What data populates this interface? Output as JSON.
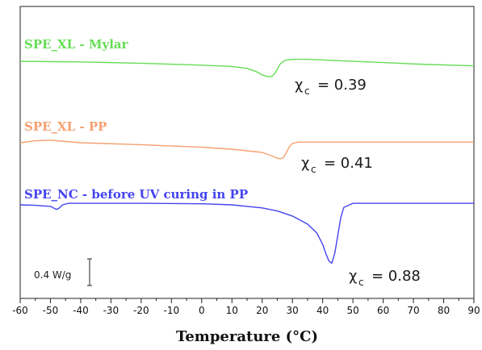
{
  "chart_data": {
    "type": "line",
    "xlabel": "Temperature (°C)",
    "ylabel": "",
    "xlim": [
      -60,
      90
    ],
    "xticks": [
      -60,
      -50,
      -40,
      -30,
      -20,
      -10,
      0,
      10,
      20,
      30,
      40,
      50,
      60,
      70,
      80,
      90
    ],
    "grid": false,
    "scale_bar": "0.4 W/g",
    "series": [
      {
        "name": "SPE_XL - Mylar",
        "color": "#66dd55",
        "annotation": {
          "symbol": "χ",
          "subscript": "c",
          "value": "= 0.39"
        },
        "x": [
          -60,
          -40,
          -20,
          0,
          10,
          15,
          18,
          20,
          22,
          23,
          24,
          25,
          26,
          27,
          28,
          30,
          35,
          45,
          60,
          75,
          90
        ],
        "y": [
          0,
          0.01,
          0.03,
          0.06,
          0.08,
          0.11,
          0.16,
          0.21,
          0.24,
          0.24,
          0.2,
          0.12,
          0.04,
          0.0,
          -0.02,
          -0.03,
          -0.03,
          -0.01,
          0.02,
          0.05,
          0.07
        ]
      },
      {
        "name": "SPE_XL - PP",
        "color": "#f5a070",
        "annotation": {
          "symbol": "χ",
          "subscript": "c",
          "value": "= 0.41"
        },
        "x": [
          -60,
          -55,
          -50,
          -40,
          -20,
          0,
          10,
          20,
          23,
          25,
          26,
          27,
          28,
          29,
          30,
          32,
          40,
          60,
          90
        ],
        "y": [
          0,
          -0.03,
          -0.04,
          0.0,
          0.03,
          0.07,
          0.1,
          0.15,
          0.2,
          0.24,
          0.25,
          0.23,
          0.15,
          0.06,
          0.01,
          -0.01,
          -0.01,
          -0.01,
          -0.01
        ]
      },
      {
        "name": "SPE_NC - before UV curing in PP",
        "color": "#4444ee",
        "annotation": {
          "symbol": "χ",
          "subscript": "c",
          "value": "= 0.88"
        },
        "x": [
          -60,
          -55,
          -50,
          -48,
          -47,
          -46,
          -44,
          -40,
          -20,
          0,
          10,
          20,
          25,
          30,
          35,
          38,
          40,
          41,
          42,
          43,
          44,
          45,
          46,
          47,
          50,
          60,
          75,
          90
        ],
        "y": [
          0,
          0.01,
          0.03,
          0.09,
          0.06,
          0.0,
          -0.03,
          -0.03,
          -0.03,
          -0.02,
          0.0,
          0.06,
          0.12,
          0.22,
          0.38,
          0.55,
          0.78,
          0.95,
          1.1,
          1.15,
          0.95,
          0.6,
          0.25,
          0.05,
          -0.03,
          -0.03,
          -0.03,
          -0.03
        ]
      }
    ]
  }
}
